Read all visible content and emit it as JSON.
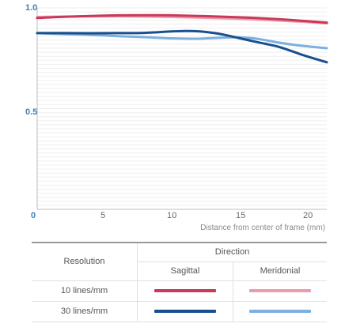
{
  "chart_data": {
    "type": "line",
    "xlabel": "Distance from center of frame (mm)",
    "ylabel": "",
    "xlim": [
      0,
      21.6
    ],
    "ylim": [
      0,
      1.0
    ],
    "x_ticks": [
      "0",
      "5",
      "10",
      "15",
      "20"
    ],
    "y_ticks": [
      "1.0",
      "0.5",
      "0"
    ],
    "grid": "horizontal",
    "series": [
      {
        "name": "10 lines/mm Sagittal",
        "color": "#c8395a",
        "x": [
          0,
          2,
          4,
          6,
          8,
          10,
          12,
          14,
          16,
          18,
          20,
          21.6
        ],
        "y": [
          0.95,
          0.956,
          0.96,
          0.963,
          0.964,
          0.963,
          0.96,
          0.956,
          0.951,
          0.944,
          0.935,
          0.927
        ]
      },
      {
        "name": "10 lines/mm Meridonial",
        "color": "#ee9aad",
        "x": [
          0,
          2,
          4,
          6,
          8,
          10,
          12,
          14,
          16,
          18,
          20,
          21.6
        ],
        "y": [
          0.955,
          0.957,
          0.958,
          0.958,
          0.957,
          0.955,
          0.952,
          0.948,
          0.943,
          0.937,
          0.93,
          0.923
        ]
      },
      {
        "name": "30 lines/mm Sagittal",
        "color": "#1a4f8f",
        "x": [
          0,
          2,
          4,
          6,
          8,
          10,
          11,
          12,
          13,
          14,
          15,
          16,
          17,
          18,
          19,
          20,
          21.6
        ],
        "y": [
          0.875,
          0.875,
          0.874,
          0.875,
          0.876,
          0.883,
          0.885,
          0.884,
          0.877,
          0.866,
          0.851,
          0.836,
          0.822,
          0.807,
          0.785,
          0.762,
          0.73
        ]
      },
      {
        "name": "30 lines/mm Meridonial",
        "color": "#7bb0df",
        "x": [
          0,
          2,
          4,
          6,
          8,
          10,
          12,
          14,
          15,
          16,
          17,
          18,
          19,
          20,
          21.6
        ],
        "y": [
          0.875,
          0.87,
          0.866,
          0.86,
          0.855,
          0.849,
          0.847,
          0.853,
          0.854,
          0.85,
          0.84,
          0.828,
          0.818,
          0.81,
          0.8
        ]
      }
    ]
  },
  "legend": {
    "header_resolution": "Resolution",
    "header_direction": "Direction",
    "col_sagittal": "Sagittal",
    "col_meridonial": "Meridonial",
    "row_10": "10 lines/mm",
    "row_30": "30 lines/mm",
    "colors": {
      "s10": "#c8395a",
      "m10": "#ee9aad",
      "s30": "#1a4f8f",
      "m30": "#7bb0df"
    }
  }
}
